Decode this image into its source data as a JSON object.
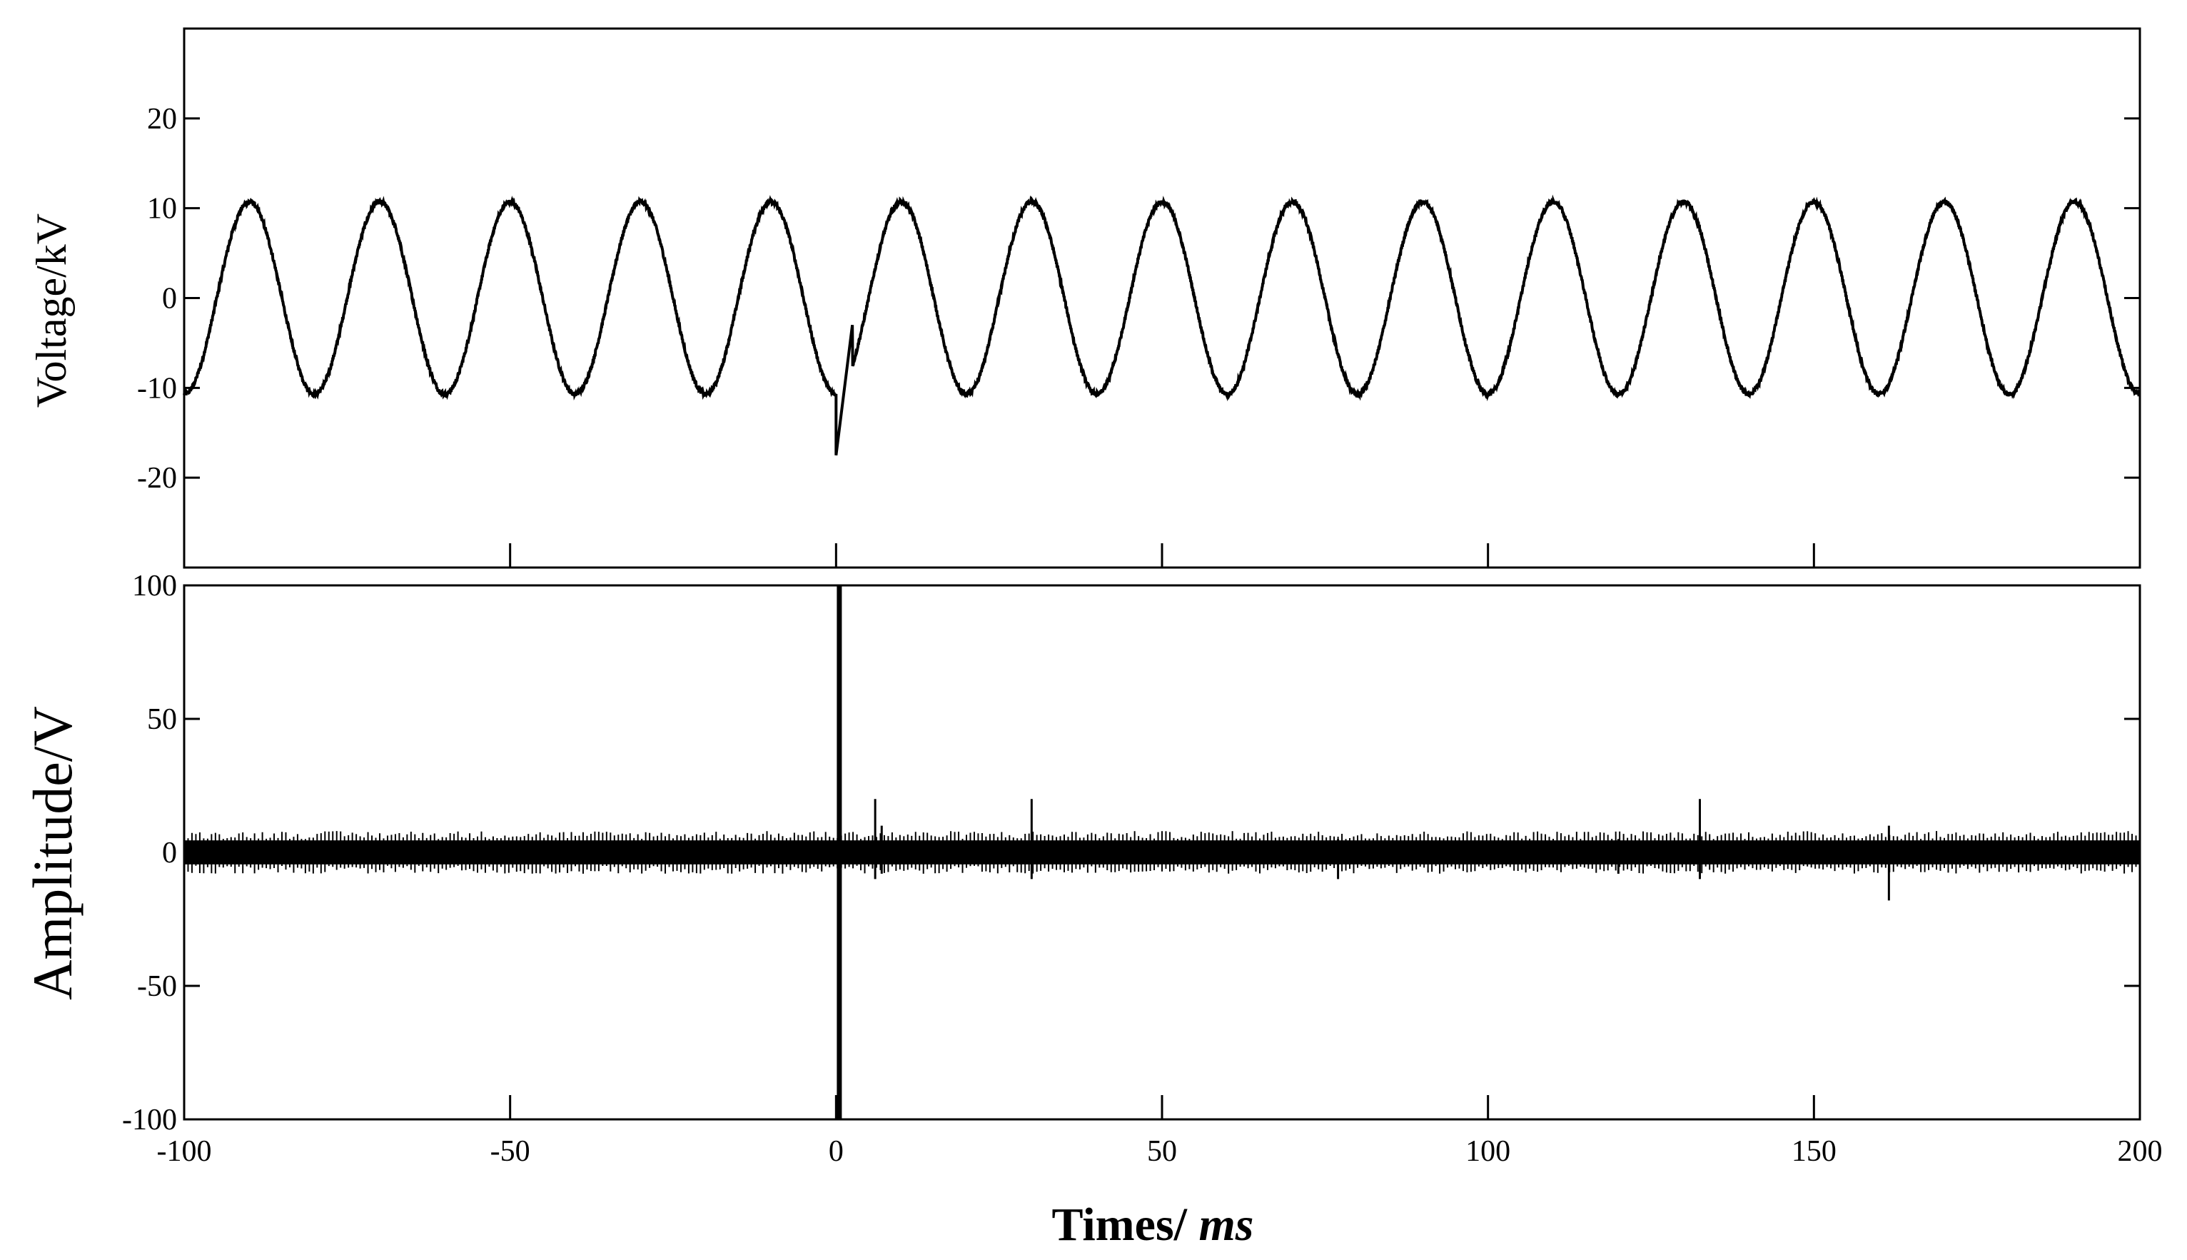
{
  "chart_data": [
    {
      "type": "line",
      "panel": "top",
      "xlabel": "",
      "ylabel": "Voltage/kV",
      "xlim": [
        -100,
        200
      ],
      "ylim": [
        -30,
        30
      ],
      "y_ticks": [
        20,
        10,
        0,
        -10,
        -20
      ],
      "x_ticks": [
        -50,
        0,
        50,
        100,
        150
      ],
      "series": [
        {
          "amplitude": 10.7,
          "period_ms": 20,
          "phase_x": -95,
          "noise": 0.25,
          "transient": {
            "x": 0,
            "min": -17.5,
            "recovery_x": 2.5,
            "recovery_y": -3
          }
        }
      ],
      "grid": false
    },
    {
      "type": "line",
      "panel": "bottom",
      "ylabel": "Amplitude/V",
      "xlim": [
        -100,
        200
      ],
      "ylim": [
        -100,
        100
      ],
      "y_ticks": [
        100,
        50,
        0,
        -50,
        -100
      ],
      "x_ticks": [
        -100,
        -50,
        0,
        50,
        100,
        150,
        200
      ],
      "baseline_noise": 5,
      "spikes": [
        {
          "x": 0.5,
          "ymin": -100,
          "ymax": 100
        },
        {
          "x": 6,
          "ymin": -10,
          "ymax": 20
        },
        {
          "x": 7,
          "ymin": -8,
          "ymax": 10
        },
        {
          "x": 30,
          "ymin": -10,
          "ymax": 20
        },
        {
          "x": 77,
          "ymin": -10,
          "ymax": 5
        },
        {
          "x": 120,
          "ymin": -8,
          "ymax": 5
        },
        {
          "x": 132.5,
          "ymin": -10,
          "ymax": 20
        },
        {
          "x": 161.5,
          "ymin": -18,
          "ymax": 10
        }
      ],
      "grid": false
    }
  ],
  "xaxis_label": {
    "main": "Times/ ",
    "unit": "ms"
  }
}
